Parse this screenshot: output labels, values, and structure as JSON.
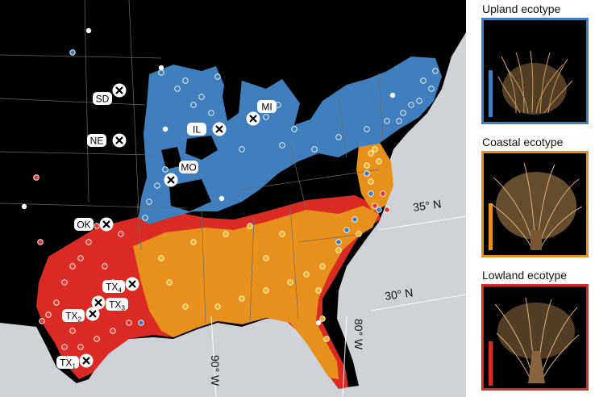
{
  "colors": {
    "ocean": "#cfd3d8",
    "land_background": "#000000",
    "upland": "#3f7fbd",
    "coastal": "#e8901c",
    "lowland": "#d92b24",
    "site_upland": "#3f7fbd",
    "site_coastal": "#f0b21c",
    "site_lowland": "#e23a32"
  },
  "map": {
    "lat_labels": [
      "35° N",
      "30° N"
    ],
    "lon_labels": [
      "80° W",
      "90° W"
    ],
    "collection_sites": [
      {
        "label": "SD",
        "subscript": ""
      },
      {
        "label": "NE",
        "subscript": ""
      },
      {
        "label": "IL",
        "subscript": ""
      },
      {
        "label": "MI",
        "subscript": ""
      },
      {
        "label": "MO",
        "subscript": ""
      },
      {
        "label": "OK",
        "subscript": ""
      },
      {
        "label": "TX",
        "subscript": "4"
      },
      {
        "label": "TX",
        "subscript": "3"
      },
      {
        "label": "TX",
        "subscript": "2"
      },
      {
        "label": "TX",
        "subscript": "1"
      }
    ]
  },
  "ecotype_panels": [
    {
      "title": "Upland ecotype",
      "color": "#3f7fbd",
      "icon": "upland-switchgrass-plant"
    },
    {
      "title": "Coastal ecotype",
      "color": "#e8901c",
      "icon": "coastal-switchgrass-plant"
    },
    {
      "title": "Lowland ecotype",
      "color": "#d92b24",
      "icon": "lowland-switchgrass-plant"
    }
  ]
}
